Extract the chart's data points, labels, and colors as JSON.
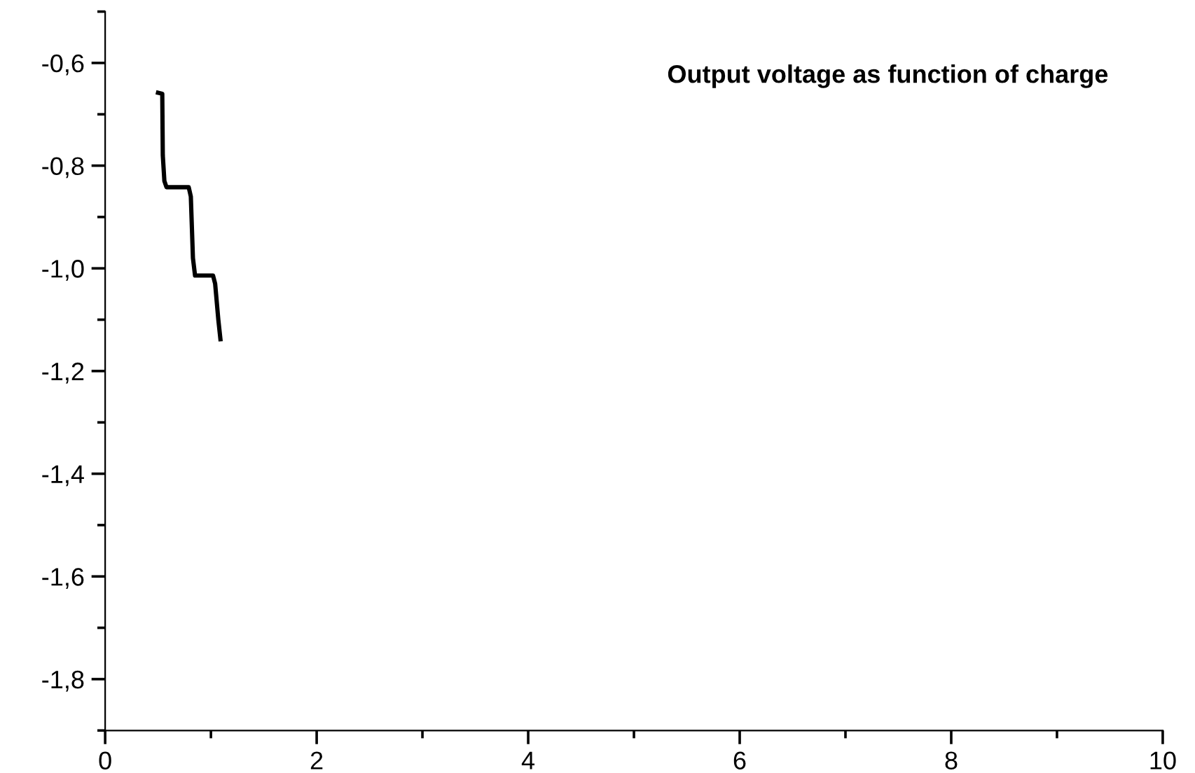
{
  "chart_data": {
    "type": "line",
    "title": "Output voltage as function of charge",
    "x": [
      0.5,
      0.54,
      0.545,
      0.56,
      0.58,
      0.79,
      0.81,
      0.83,
      0.85,
      1.02,
      1.04,
      1.07,
      1.09
    ],
    "series": [
      {
        "color": "#000000",
        "values": [
          -0.658,
          -0.66,
          -0.78,
          -0.83,
          -0.842,
          -0.842,
          -0.86,
          -0.98,
          -1.014,
          -1.014,
          -1.03,
          -1.1,
          -1.138
        ]
      }
    ],
    "xlim": [
      0,
      10
    ],
    "ylim": [
      -1.9,
      -0.5
    ],
    "xticks": [
      0,
      {
        "value": 1,
        "label": null
      },
      2,
      {
        "value": 3,
        "label": null
      },
      4,
      {
        "value": 5,
        "label": null
      },
      6,
      {
        "value": 7,
        "label": null
      },
      8,
      {
        "value": 9,
        "label": null
      },
      10
    ],
    "yticks": [
      {
        "value": -1.9,
        "label": null
      },
      {
        "value": -1.8,
        "label": "-1,8"
      },
      {
        "value": -1.7,
        "label": null
      },
      {
        "value": -1.6,
        "label": "-1,6"
      },
      {
        "value": -1.5,
        "label": null
      },
      {
        "value": -1.4,
        "label": "-1,4"
      },
      {
        "value": -1.3,
        "label": null
      },
      {
        "value": -1.2,
        "label": "-1,2"
      },
      {
        "value": -1.1,
        "label": null
      },
      {
        "value": -1.0,
        "label": "-1,0"
      },
      {
        "value": -0.9,
        "label": null
      },
      {
        "value": -0.8,
        "label": "-0,8"
      },
      {
        "value": -0.7,
        "label": null
      },
      {
        "value": -0.6,
        "label": "-0,6"
      },
      {
        "value": -0.5,
        "label": null
      }
    ],
    "grid": false,
    "legend": false,
    "marker": "none",
    "line_style": "solid"
  }
}
